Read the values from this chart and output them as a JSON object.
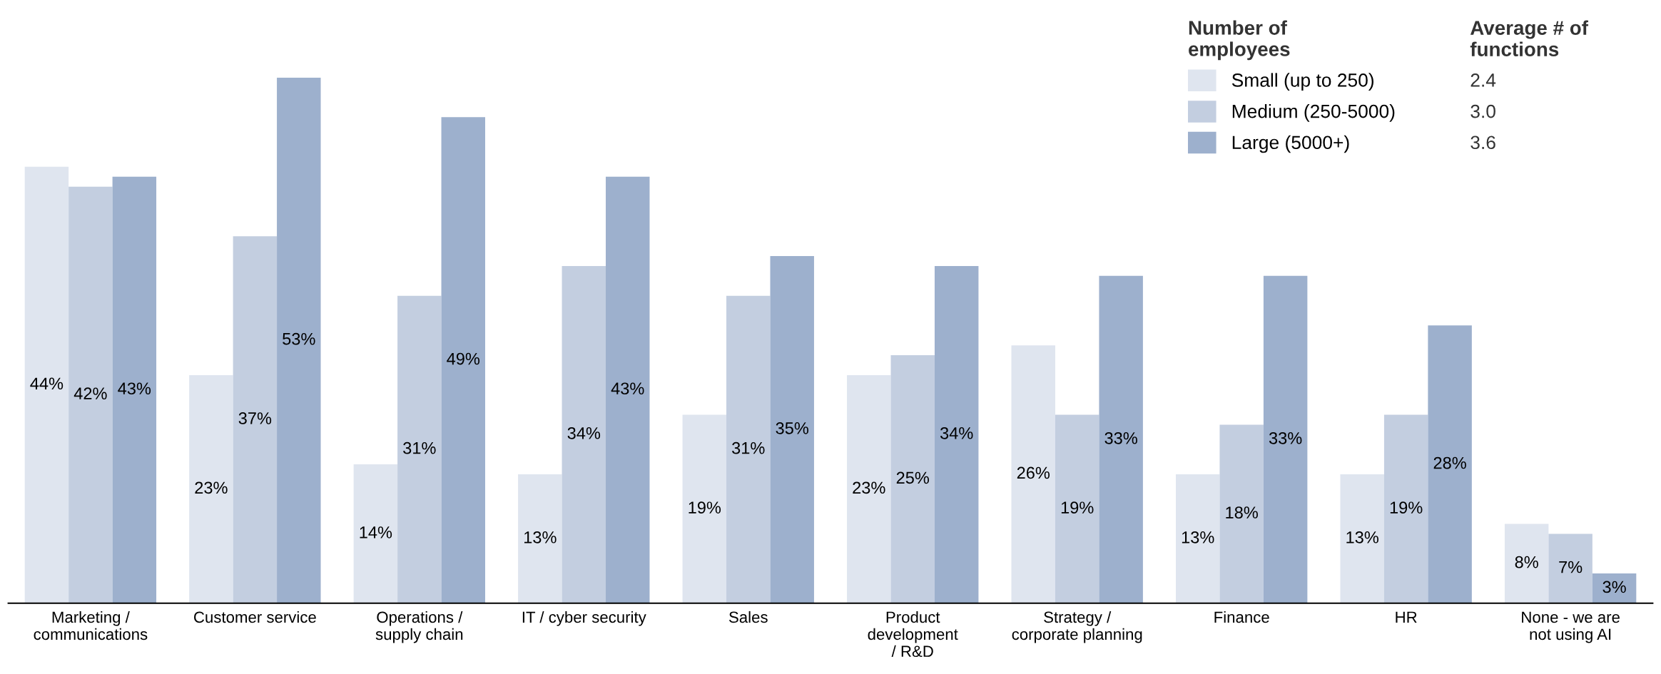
{
  "chart_data": {
    "type": "bar",
    "categories": [
      "Marketing /\ncommunications",
      "Customer service",
      "Operations /\nsupply chain",
      "IT / cyber security",
      "Sales",
      "Product\ndevelopment\n/ R&D",
      "Strategy /\ncorporate planning",
      "Finance",
      "HR",
      "None - we are\nnot using AI"
    ],
    "series": [
      {
        "name": "Small (up to 250)",
        "color": "#dfe5ef",
        "values": [
          44,
          23,
          14,
          13,
          19,
          23,
          26,
          13,
          13,
          8
        ],
        "value_labels": [
          "44%",
          "23%",
          "14%",
          "13%",
          "19%",
          "23%",
          "26%",
          "13%",
          "13%",
          "8%"
        ]
      },
      {
        "name": "Medium (250-5000)",
        "color": "#c3cee0",
        "values": [
          42,
          37,
          31,
          34,
          31,
          25,
          19,
          18,
          19,
          7
        ],
        "value_labels": [
          "42%",
          "37%",
          "31%",
          "34%",
          "31%",
          "25%",
          "19%",
          "18%",
          "19%",
          "7%"
        ]
      },
      {
        "name": "Large (5000+)",
        "color": "#9db0cd",
        "values": [
          43,
          53,
          49,
          43,
          35,
          34,
          33,
          33,
          28,
          3
        ],
        "value_labels": [
          "43%",
          "53%",
          "49%",
          "43%",
          "35%",
          "34%",
          "33%",
          "33%",
          "28%",
          "3%"
        ]
      }
    ],
    "legend": "top right",
    "legend_title": "Number of\nemployees",
    "annotations": [
      "Average # of\nfunctions",
      "2.4",
      "3.0",
      "3.6"
    ]
  }
}
